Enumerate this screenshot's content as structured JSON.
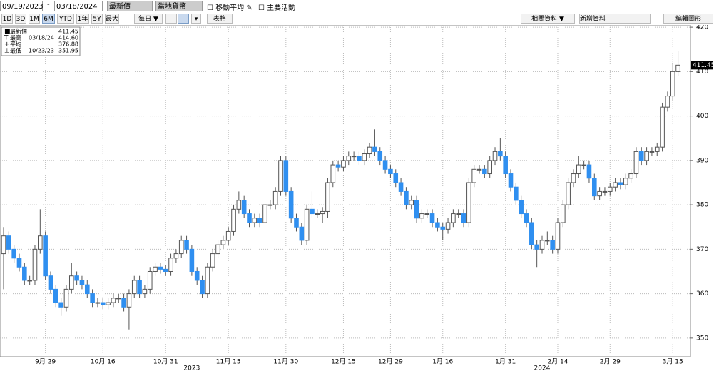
{
  "ui": {
    "start_date": "09/19/2023",
    "end_date": "03/18/2024",
    "field": "最新價",
    "currency": "當地貨幣",
    "checkboxes": [
      "移動平均",
      "主要活動"
    ],
    "periods": [
      "1D",
      "3D",
      "1M",
      "6M",
      "YTD",
      "1年",
      "5Y",
      "最大"
    ],
    "selected_period": 3,
    "frequency": "每日",
    "table": "表格",
    "related": "相關資料",
    "add": "新增資料",
    "edit": "編輯圖形"
  },
  "chart_data": {
    "type": "candlestick",
    "stats": [
      {
        "label": "最新價",
        "date": null,
        "value": "411.45"
      },
      {
        "label": "最高",
        "date": "03/18/24",
        "value": "414.60"
      },
      {
        "label": "平均",
        "date": null,
        "value": "376.88"
      },
      {
        "label": "最低",
        "date": "10/23/23",
        "value": "351.95"
      }
    ],
    "categories": [
      null,
      null,
      null,
      null,
      null,
      null,
      null,
      null,
      "9月 29",
      null,
      null,
      null,
      null,
      null,
      null,
      null,
      null,
      null,
      null,
      "10月 16",
      null,
      null,
      null,
      null,
      null,
      null,
      null,
      null,
      null,
      null,
      null,
      "10月 31",
      null,
      null,
      null,
      null,
      null,
      null,
      null,
      null,
      null,
      null,
      null,
      "11月 15",
      null,
      null,
      null,
      null,
      null,
      null,
      null,
      null,
      null,
      null,
      "11月 30",
      null,
      null,
      null,
      null,
      null,
      null,
      null,
      null,
      null,
      null,
      "12月 15",
      null,
      null,
      null,
      null,
      null,
      null,
      null,
      null,
      "12月 29",
      null,
      null,
      null,
      null,
      null,
      null,
      null,
      null,
      null,
      "1月 16",
      null,
      null,
      null,
      null,
      null,
      null,
      null,
      null,
      null,
      null,
      null,
      "1月 31",
      null,
      null,
      null,
      null,
      null,
      null,
      null,
      null,
      null,
      "2月 14",
      null,
      null,
      null,
      null,
      null,
      null,
      null,
      null,
      null,
      "2月 29",
      null,
      null,
      null,
      null,
      null,
      null,
      null,
      null,
      null,
      null,
      null,
      "3月 15",
      null
    ],
    "years": [
      null,
      null,
      null,
      null,
      null,
      null,
      null,
      null,
      null,
      null,
      null,
      null,
      null,
      null,
      null,
      null,
      null,
      null,
      null,
      null,
      null,
      null,
      null,
      null,
      null,
      null,
      null,
      null,
      null,
      null,
      null,
      null,
      null,
      null,
      null,
      null,
      "2023",
      null,
      null,
      null,
      null,
      null,
      null,
      null,
      null,
      null,
      null,
      null,
      null,
      null,
      null,
      null,
      null,
      null,
      null,
      null,
      null,
      null,
      null,
      null,
      null,
      null,
      null,
      null,
      null,
      null,
      null,
      null,
      null,
      null,
      null,
      null,
      null,
      null,
      null,
      null,
      null,
      null,
      null,
      null,
      null,
      null,
      null,
      null,
      null,
      null,
      null,
      null,
      null,
      null,
      null,
      null,
      null,
      null,
      null,
      null,
      null,
      null,
      null,
      null,
      null,
      null,
      null,
      "2024",
      null,
      null,
      null,
      null,
      null,
      null,
      null,
      null,
      null,
      null,
      null,
      null,
      null,
      null,
      null,
      null,
      null,
      null,
      null,
      null,
      null,
      null,
      null,
      null,
      null,
      null
    ],
    "open": [
      369,
      373,
      370,
      368,
      366,
      363,
      363,
      370,
      373,
      364,
      361,
      358,
      357,
      361,
      364,
      363,
      362,
      360,
      358,
      358,
      357.5,
      358,
      359,
      359,
      357,
      360,
      363,
      360,
      361,
      365,
      366,
      365.5,
      365,
      368,
      369,
      372,
      370,
      365,
      363,
      360,
      366,
      369,
      371,
      372,
      374,
      379,
      381,
      378,
      376,
      377,
      376,
      380,
      380,
      383,
      390,
      383,
      377,
      375,
      372,
      379,
      378,
      378,
      378.5,
      385,
      389,
      388.5,
      390,
      391,
      391,
      390,
      391.5,
      393,
      392,
      390,
      388,
      387,
      385,
      383,
      380,
      381,
      377,
      378,
      378,
      376,
      375,
      374.5,
      376,
      378,
      378,
      376,
      385,
      388,
      388,
      387,
      390,
      392,
      391,
      387,
      384,
      381,
      378,
      376,
      371,
      370,
      372,
      372,
      370,
      376,
      380,
      385,
      387,
      389,
      389,
      386,
      382,
      383,
      383,
      384,
      385,
      384.5,
      386,
      387,
      392,
      390,
      392,
      392,
      393,
      402,
      404.5,
      410
    ],
    "high": [
      375,
      374,
      371,
      369,
      367,
      364,
      371,
      379,
      374,
      365,
      362,
      359,
      362,
      367,
      365,
      364,
      363,
      361,
      359,
      359,
      359,
      360,
      360,
      360,
      361,
      364,
      364,
      362,
      366,
      367,
      367,
      366.5,
      369,
      370,
      373,
      373,
      371,
      366,
      364,
      367,
      370,
      372,
      373,
      375,
      380,
      383,
      382,
      379,
      378,
      378,
      381,
      381,
      384,
      391,
      391,
      384,
      378,
      376,
      380,
      383,
      379,
      379.5,
      386,
      390,
      390,
      391,
      392,
      392,
      392,
      392.5,
      394,
      397,
      393,
      391,
      389,
      388,
      386,
      384,
      382,
      382,
      379,
      379,
      379,
      377,
      376,
      377,
      379,
      379,
      379,
      386,
      389,
      389,
      389,
      391,
      393,
      395,
      392,
      388,
      385,
      382,
      379,
      377,
      372,
      373,
      374,
      373,
      377,
      381,
      386,
      388,
      391,
      390,
      390,
      387,
      384,
      384,
      385,
      386,
      386,
      387,
      388,
      393,
      393,
      393,
      393,
      394,
      403,
      405.5,
      412,
      414.6
    ],
    "low": [
      361,
      369,
      367,
      365,
      362,
      362,
      362,
      369,
      363,
      360,
      357,
      355,
      356,
      360,
      362,
      361,
      359,
      357,
      357,
      356.5,
      356.5,
      357,
      358,
      356,
      351.95,
      359,
      359,
      359,
      360,
      364,
      364.5,
      364,
      364,
      367,
      368,
      369,
      364,
      362,
      359,
      359,
      365,
      368,
      370,
      371,
      373,
      378,
      377,
      375,
      375,
      375,
      375,
      379,
      379,
      382,
      382,
      376,
      374,
      371,
      371,
      377,
      377,
      376,
      377,
      384,
      387.5,
      387.5,
      389,
      390,
      389,
      389,
      390.5,
      391,
      389,
      387,
      386,
      384,
      382,
      379,
      379,
      376,
      376,
      377,
      375,
      374,
      372,
      373.5,
      375,
      377,
      375,
      375,
      384,
      387,
      386,
      386,
      389,
      390,
      386,
      383,
      380,
      377,
      375,
      370,
      366,
      369,
      371,
      369,
      369,
      375,
      379,
      384,
      386,
      388,
      385,
      381,
      381,
      382,
      382,
      383,
      383.5,
      383.5,
      385,
      386,
      389,
      389,
      391,
      391,
      392,
      401,
      403.5,
      409
    ],
    "close": [
      373,
      370,
      368,
      366,
      363,
      363,
      370,
      373,
      364,
      361,
      358,
      357,
      361,
      364,
      363,
      362,
      360,
      358,
      358,
      357.5,
      358,
      359,
      359,
      357,
      360,
      363,
      360,
      361,
      365,
      366,
      365.5,
      365,
      368,
      369,
      372,
      370,
      365,
      363,
      360,
      366,
      369,
      371,
      372,
      374,
      379,
      381,
      378,
      376,
      377,
      376,
      380,
      380,
      383,
      390,
      383,
      377,
      375,
      372,
      379,
      378,
      378,
      378.5,
      385,
      389,
      388.5,
      390,
      391,
      391,
      390,
      391.5,
      393,
      392,
      390,
      388,
      387,
      385,
      383,
      380,
      381,
      377,
      378,
      378,
      376,
      375,
      374.5,
      376,
      378,
      378,
      376,
      385,
      388,
      388,
      387,
      390,
      392,
      391,
      387,
      384,
      381,
      378,
      376,
      371,
      370,
      372,
      372,
      370,
      376,
      380,
      385,
      387,
      389,
      389,
      386,
      382,
      383,
      383,
      384,
      385,
      384.5,
      386,
      387,
      392,
      390,
      392,
      392,
      393,
      402,
      404.5,
      410,
      411.45
    ],
    "up_color": "#ffffff",
    "down_color": "#2f8ff0",
    "ylim": [
      345.8,
      420.5
    ],
    "yticks": [
      350,
      360,
      370,
      380,
      390,
      400,
      410,
      420
    ],
    "grid": true
  }
}
